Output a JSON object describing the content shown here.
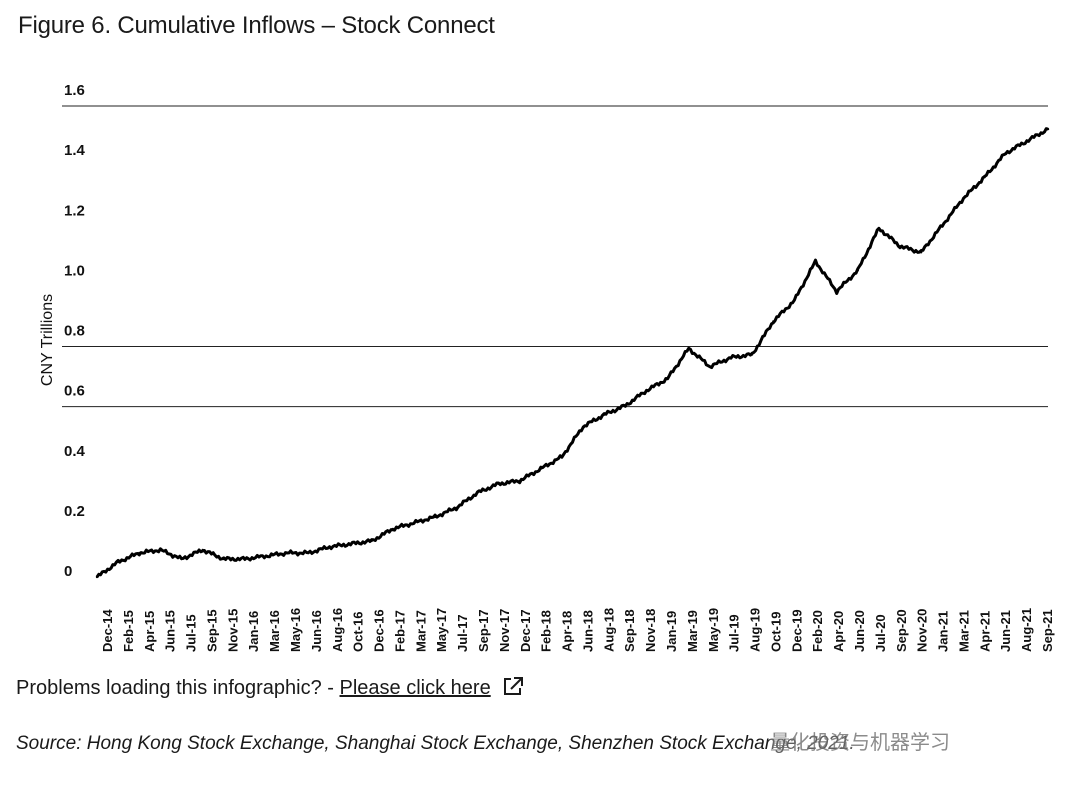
{
  "title": "Figure 6. Cumulative Inflows – Stock Connect",
  "problems": {
    "prefix": "Problems loading this infographic? - ",
    "link": "Please click here"
  },
  "source": {
    "text": "Source: Hong Kong Stock Exchange, Shanghai Stock Exchange, Shenzhen Stock Exchange, 2021."
  },
  "watermark": "量化投资与机器学习",
  "chart_data": {
    "type": "line",
    "title": "",
    "xlabel": "",
    "ylabel": "CNY Trillions",
    "ylim": [
      0,
      1.6
    ],
    "yticks": [
      "0",
      "0.2",
      "0.4",
      "0.6",
      "0.8",
      "1.0",
      "1.2",
      "1.4",
      "1.6"
    ],
    "grid": "horizontal lines at 0.6, 0.8, 1.6",
    "categories": [
      "Dec-14",
      "Feb-15",
      "Apr-15",
      "Jun-15",
      "Jul-15",
      "Sep-15",
      "Nov-15",
      "Jan-16",
      "Mar-16",
      "May-16",
      "Jun-16",
      "Aug-16",
      "Oct-16",
      "Dec-16",
      "Feb-17",
      "Mar-17",
      "May-17",
      "Jul-17",
      "Sep-17",
      "Nov-17",
      "Dec-17",
      "Feb-18",
      "Apr-18",
      "Jun-18",
      "Aug-18",
      "Sep-18",
      "Nov-18",
      "Jan-19",
      "Mar-19",
      "May-19",
      "Jul-19",
      "Aug-19",
      "Oct-19",
      "Dec-19",
      "Feb-20",
      "Apr-20",
      "Jun-20",
      "Jul-20",
      "Sep-20",
      "Nov-20",
      "Jan-21",
      "Mar-21",
      "Apr-21",
      "Jun-21",
      "Aug-21",
      "Sep-21"
    ],
    "series": [
      {
        "values": [
          0.0,
          0.05,
          0.08,
          0.09,
          0.06,
          0.09,
          0.06,
          0.06,
          0.07,
          0.08,
          0.08,
          0.1,
          0.11,
          0.12,
          0.16,
          0.18,
          0.2,
          0.23,
          0.28,
          0.31,
          0.32,
          0.36,
          0.4,
          0.5,
          0.54,
          0.57,
          0.62,
          0.66,
          0.76,
          0.7,
          0.73,
          0.74,
          0.85,
          0.92,
          1.05,
          0.95,
          1.02,
          1.16,
          1.1,
          1.08,
          1.17,
          1.26,
          1.33,
          1.41,
          1.45,
          1.49
        ]
      }
    ]
  }
}
